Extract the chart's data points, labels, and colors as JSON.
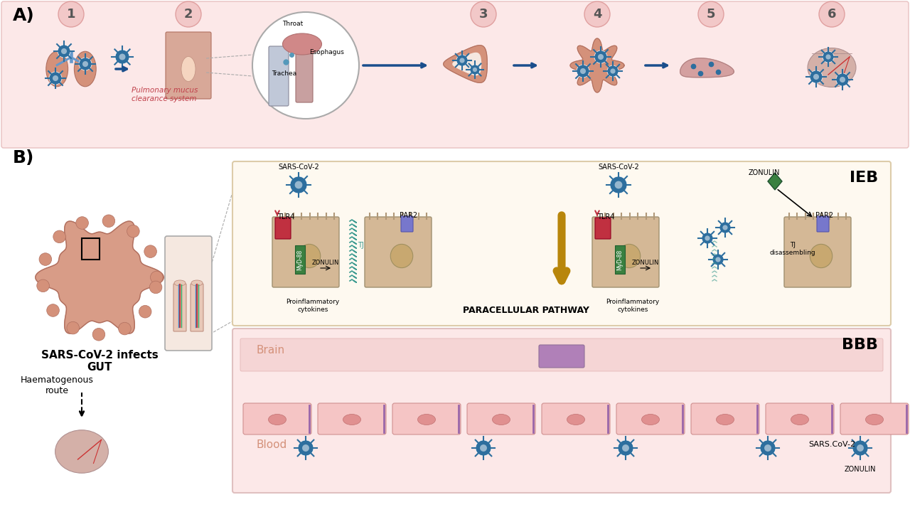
{
  "title": "",
  "bg_color": "#ffffff",
  "panel_a_bg": "#fce8e8",
  "panel_b_bg": "#ffffff",
  "panel_a_label": "A)",
  "panel_b_label": "B)",
  "step_labels": [
    "1",
    "2",
    "3",
    "4",
    "5",
    "6"
  ],
  "pulmonary_text": "Pulmonary mucus\nclearance system",
  "throat_label": "Throat",
  "esophagus_label": "Esophagus",
  "trachea_label": "Trachea",
  "sars_cov2_infects": "SARS-CoV-2 infects\nGUT",
  "haematogenous": "Haematogenous\nroute",
  "ieb_label": "IEB",
  "bbb_label": "BBB",
  "paracellular": "PARACELLULAR PATHWAY",
  "brain_label": "Brain",
  "blood_label": "Blood",
  "sars_cov2_label": "SARS.CoV-2",
  "zonulin_label": "ZONULIN",
  "tlr4_label": "TLR4",
  "par2_label": "PAR2",
  "myd88_label": "MyD-88",
  "tj_label": "TJ",
  "tj_disassembling": "TJ\ndisassembling",
  "proinflam": "Proinflammatory\ncytokines",
  "arrow_color": "#1a4e8c",
  "virus_color": "#2d6e9e",
  "pink_bg": "#f9dede",
  "skin_color": "#d4917a",
  "cell_color": "#d4b896",
  "green_color": "#4a7c59",
  "purple_color": "#7b5ea7",
  "mauve_color": "#b5829a",
  "gold_color": "#b8860b",
  "teal_color": "#3a9a8f"
}
